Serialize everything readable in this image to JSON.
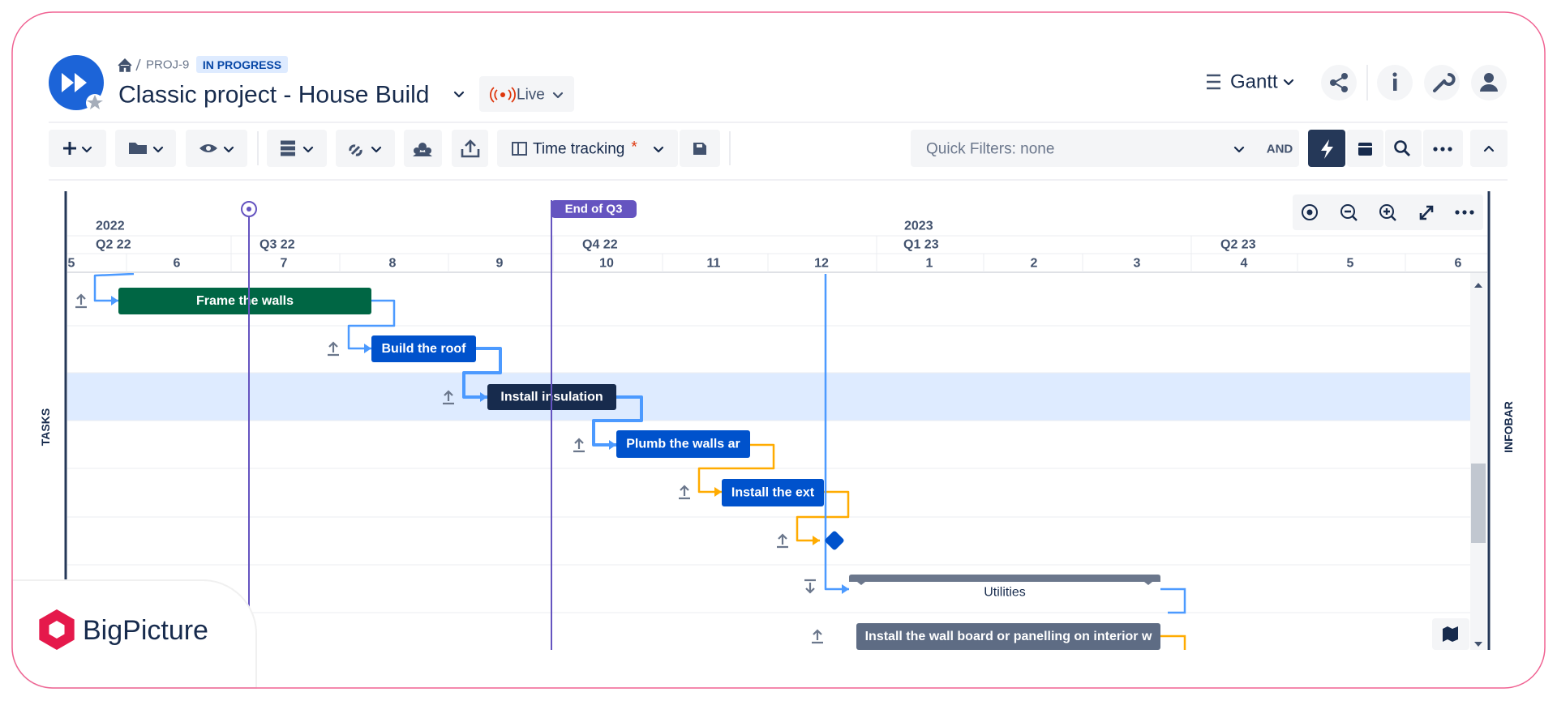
{
  "header": {
    "breadcrumb": "PROJ-9",
    "status": "IN PROGRESS",
    "title": "Classic project - House Build",
    "live": "Live",
    "view": "Gantt"
  },
  "toolbar": {
    "time_tracking": "Time tracking",
    "required_mark": "*",
    "quick_filters": "Quick Filters: none",
    "logic": "AND"
  },
  "timeline": {
    "years": [
      "2022",
      "2023"
    ],
    "quarters": [
      "Q2 22",
      "Q3 22",
      "Q4 22",
      "Q1 23",
      "Q2 23"
    ],
    "months": [
      "5",
      "6",
      "7",
      "8",
      "9",
      "10",
      "11",
      "12",
      "1",
      "2",
      "3",
      "4",
      "5",
      "6"
    ],
    "marker": "End of Q3"
  },
  "tasks": [
    "Frame the walls",
    "Build the roof",
    "Install insulation",
    "Plumb the walls ar",
    "Install the ext",
    "Utilities",
    "Install the wall board or panelling on interior w"
  ],
  "panels": {
    "left": "TASKS",
    "right": "INFOBAR"
  },
  "brand": "BigPicture"
}
